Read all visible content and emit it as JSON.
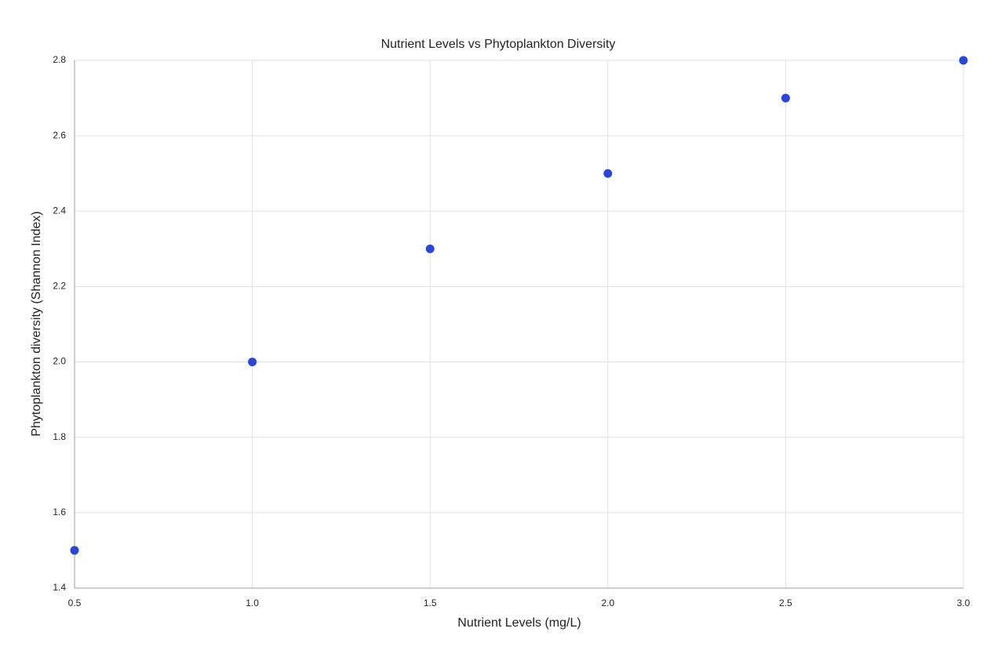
{
  "chart_data": {
    "type": "scatter",
    "title": "Nutrient Levels vs Phytoplankton Diversity",
    "x_label": "Nutrient Levels (mg/L)",
    "y_label": "Phytoplankton diversity (Shannon Index)",
    "x": [
      0.5,
      1.0,
      1.5,
      2.0,
      2.5,
      3.0
    ],
    "values": [
      1.5,
      2.0,
      2.3,
      2.5,
      2.7,
      2.8
    ],
    "color": "#2b46d4",
    "xlim": [
      0.5,
      3.0
    ],
    "xticks": [
      0.5,
      {
        "value": 1,
        "label": "1.0"
      },
      1.5,
      {
        "value": 2,
        "label": "2.0"
      },
      2.5,
      {
        "value": 3,
        "label": "3.0"
      }
    ],
    "ylim": [
      1.4,
      2.8
    ],
    "yticks": [
      1.4,
      1.6,
      1.8,
      {
        "value": 2,
        "label": "2.0"
      },
      2.2,
      2.4,
      2.6,
      2.8
    ],
    "grid": true
  }
}
